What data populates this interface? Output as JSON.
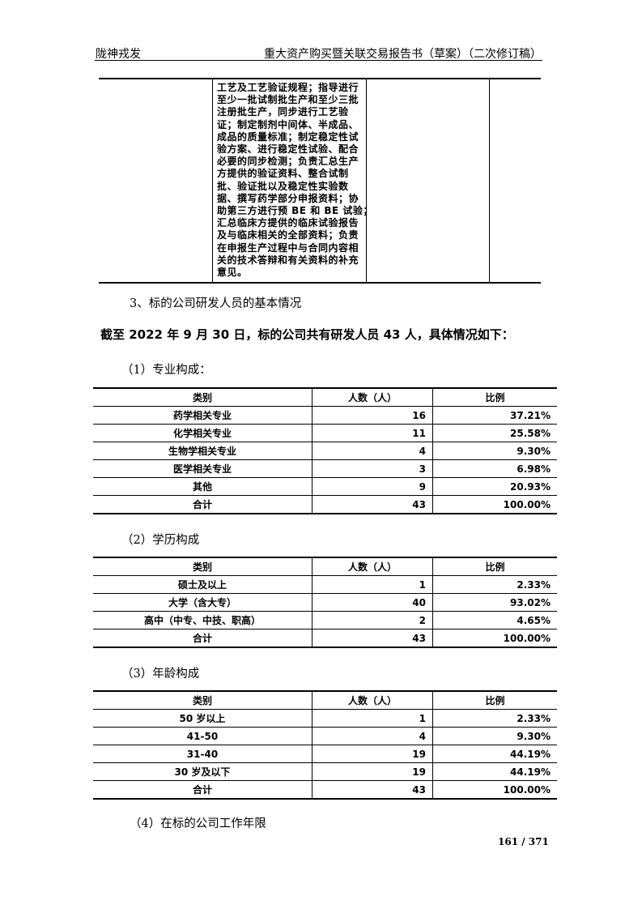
{
  "header": {
    "left": "陇神戎发",
    "right": "重大资产购买暨关联交易报告书（草案）（二次修订稿）"
  },
  "continued_cell_lines": [
    "工艺及工艺验证规程；指导进行",
    "至少一批试制批生产和至少三批",
    "注册批生产，同步进行工艺验",
    "证；制定制剂中间体、半成品、",
    "成品的质量标准；制定稳定性试",
    "验方案、进行稳定性试验、配合",
    "必要的同步检测；负责汇总生产",
    "方提供的验证资料、整合试制",
    "批、验证批以及稳定性实验数",
    "据、撰写药学部分申报资料；协",
    "助第三方进行预 BE 和 BE 试验；",
    "汇总临床方提供的临床试验报告",
    "及与临床相关的全部资料；负责",
    "在申报生产过程中与合同内容相",
    "关的技术答辩和有关资料的补充",
    "意见。"
  ],
  "section_heading": "3、标的公司研发人员的基本情况",
  "summary": "截至 2022 年 9 月 30 日，标的公司共有研发人员 43 人，具体情况如下：",
  "tables": [
    {
      "caption": "（1）专业构成：",
      "columns": [
        "类别",
        "人数（人）",
        "比例"
      ],
      "rows": [
        [
          "药学相关专业",
          "16",
          "37.21%"
        ],
        [
          "化学相关专业",
          "11",
          "25.58%"
        ],
        [
          "生物学相关专业",
          "4",
          "9.30%"
        ],
        [
          "医学相关专业",
          "3",
          "6.98%"
        ],
        [
          "其他",
          "9",
          "20.93%"
        ],
        [
          "合计",
          "43",
          "100.00%"
        ]
      ]
    },
    {
      "caption": "（2）学历构成",
      "columns": [
        "类别",
        "人数（人）",
        "比例"
      ],
      "rows": [
        [
          "硕士及以上",
          "1",
          "2.33%"
        ],
        [
          "大学（含大专）",
          "40",
          "93.02%"
        ],
        [
          "高中（中专、中技、职高）",
          "2",
          "4.65%"
        ],
        [
          "合计",
          "43",
          "100.00%"
        ]
      ]
    },
    {
      "caption": "（3）年龄构成",
      "columns": [
        "类别",
        "人数（人）",
        "比例"
      ],
      "rows": [
        [
          "50 岁以上",
          "1",
          "2.33%"
        ],
        [
          "41-50",
          "4",
          "9.30%"
        ],
        [
          "31-40",
          "19",
          "44.19%"
        ],
        [
          "30 岁及以下",
          "19",
          "44.19%"
        ],
        [
          "合计",
          "43",
          "100.00%"
        ]
      ]
    }
  ],
  "next_caption": "（4）在标的公司工作年限",
  "page_number": "161 / 371"
}
